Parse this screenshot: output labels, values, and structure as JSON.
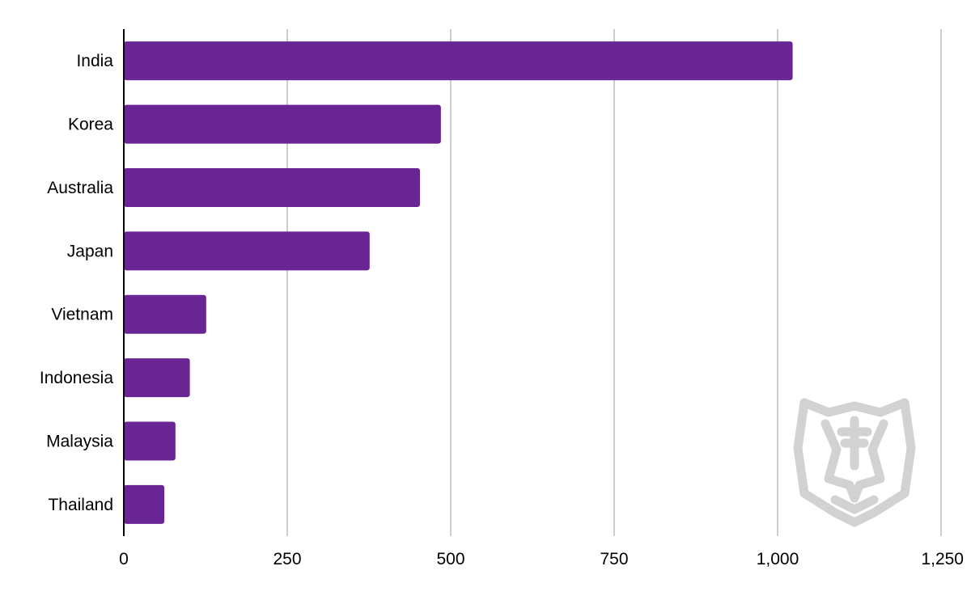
{
  "chart_data": {
    "type": "bar",
    "orientation": "horizontal",
    "title": "",
    "xlabel": "",
    "ylabel": "",
    "categories": [
      "India",
      "Korea",
      "Australia",
      "Japan",
      "Vietnam",
      "Indonesia",
      "Malaysia",
      "Thailand"
    ],
    "values": [
      1023,
      485,
      453,
      376,
      126,
      101,
      79,
      62
    ],
    "xlim": [
      0,
      1250
    ],
    "x_ticks": [
      0,
      250,
      500,
      750,
      1000,
      1250
    ],
    "x_tick_labels": [
      "0",
      "250",
      "500",
      "750",
      "1,000",
      "1,250"
    ],
    "grid": "vertical",
    "legend": "none",
    "bar_color": "#6a2594",
    "grid_color": "#cccccc",
    "axis_color": "#000000"
  },
  "watermark": {
    "icon": "tiger-head-logo-icon",
    "color": "#d2d2d2"
  }
}
